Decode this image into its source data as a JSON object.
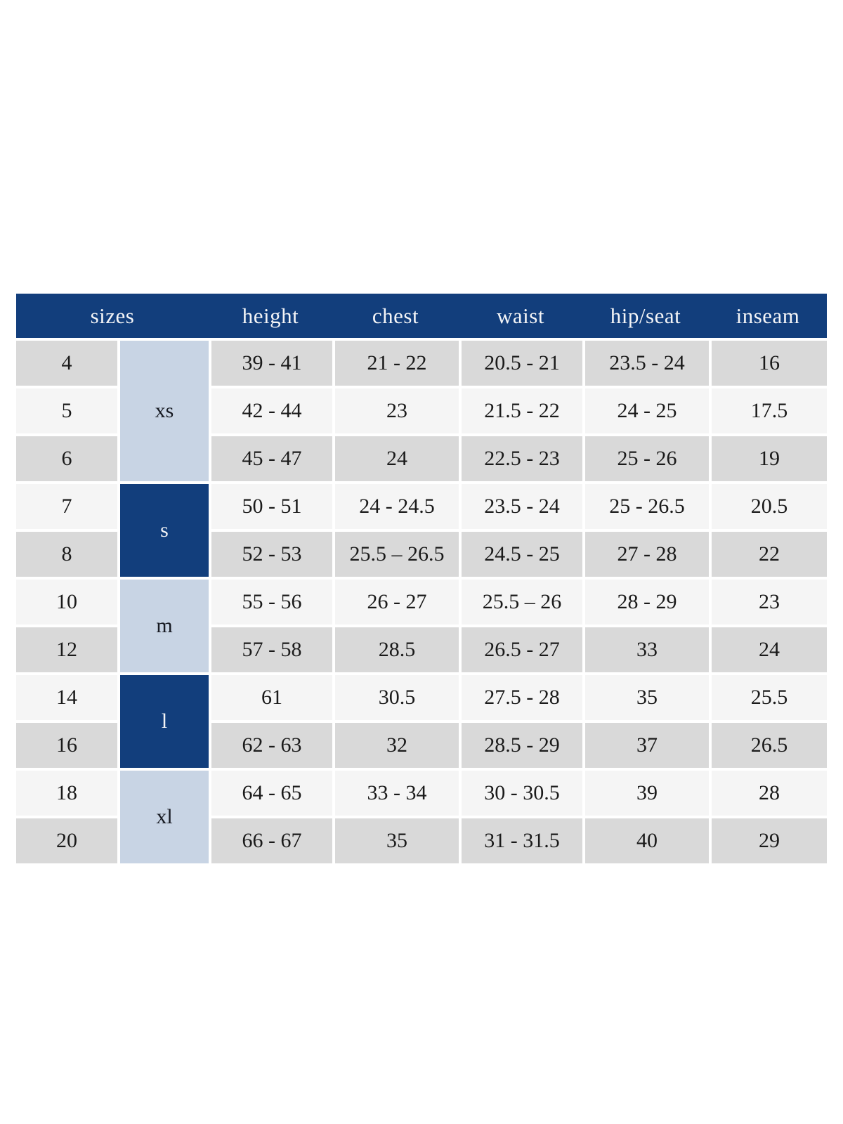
{
  "colors": {
    "header_bg": "#123e7c",
    "header_text": "#f4f5f7",
    "group_dark_bg": "#123e7c",
    "group_dark_text": "#f4f5f7",
    "group_light_bg": "#c8d4e4",
    "group_light_text": "#171a22",
    "row_gray": "#d9d9d9",
    "row_light": "#f5f5f5",
    "cell_text": "#1a1a1a",
    "page_bg": "#ffffff"
  },
  "table": {
    "headers": [
      {
        "label": "sizes",
        "spans_columns": 2
      },
      {
        "label": "height",
        "spans_columns": 1
      },
      {
        "label": "chest",
        "spans_columns": 1
      },
      {
        "label": "waist",
        "spans_columns": 1
      },
      {
        "label": "hip/seat",
        "spans_columns": 1
      },
      {
        "label": "inseam",
        "spans_columns": 1
      }
    ]
  },
  "chart_data": {
    "type": "table",
    "title": "",
    "columns": [
      "sizes",
      "height",
      "chest",
      "waist",
      "hip/seat",
      "inseam"
    ],
    "size_group_column": [
      {
        "label": "xs",
        "sizes": [
          "4",
          "5",
          "6"
        ]
      },
      {
        "label": "s",
        "sizes": [
          "7",
          "8"
        ]
      },
      {
        "label": "m",
        "sizes": [
          "10",
          "12"
        ]
      },
      {
        "label": "l",
        "sizes": [
          "14",
          "16"
        ]
      },
      {
        "label": "xl",
        "sizes": [
          "18",
          "20"
        ]
      }
    ],
    "rows": [
      [
        "4",
        "39 - 41",
        "21 - 22",
        "20.5 - 21",
        "23.5 - 24",
        "16"
      ],
      [
        "5",
        "42 - 44",
        "23",
        "21.5 - 22",
        "24 - 25",
        "17.5"
      ],
      [
        "6",
        "45 - 47",
        "24",
        "22.5 - 23",
        "25 - 26",
        "19"
      ],
      [
        "7",
        "50 - 51",
        "24 - 24.5",
        "23.5 - 24",
        "25 - 26.5",
        "20.5"
      ],
      [
        "8",
        "52 - 53",
        "25.5 – 26.5",
        "24.5 - 25",
        "27 - 28",
        "22"
      ],
      [
        "10",
        "55 - 56",
        "26 - 27",
        "25.5 – 26",
        "28 - 29",
        "23"
      ],
      [
        "12",
        "57 - 58",
        "28.5",
        "26.5 - 27",
        "33",
        "24"
      ],
      [
        "14",
        "61",
        "30.5",
        "27.5 - 28",
        "35",
        "25.5"
      ],
      [
        "16",
        "62 - 63",
        "32",
        "28.5 - 29",
        "37",
        "26.5"
      ],
      [
        "18",
        "64 - 65",
        "33 - 34",
        "30 - 30.5",
        "39",
        "28"
      ],
      [
        "20",
        "66 - 67",
        "35",
        "31 - 31.5",
        "40",
        "29"
      ]
    ]
  }
}
